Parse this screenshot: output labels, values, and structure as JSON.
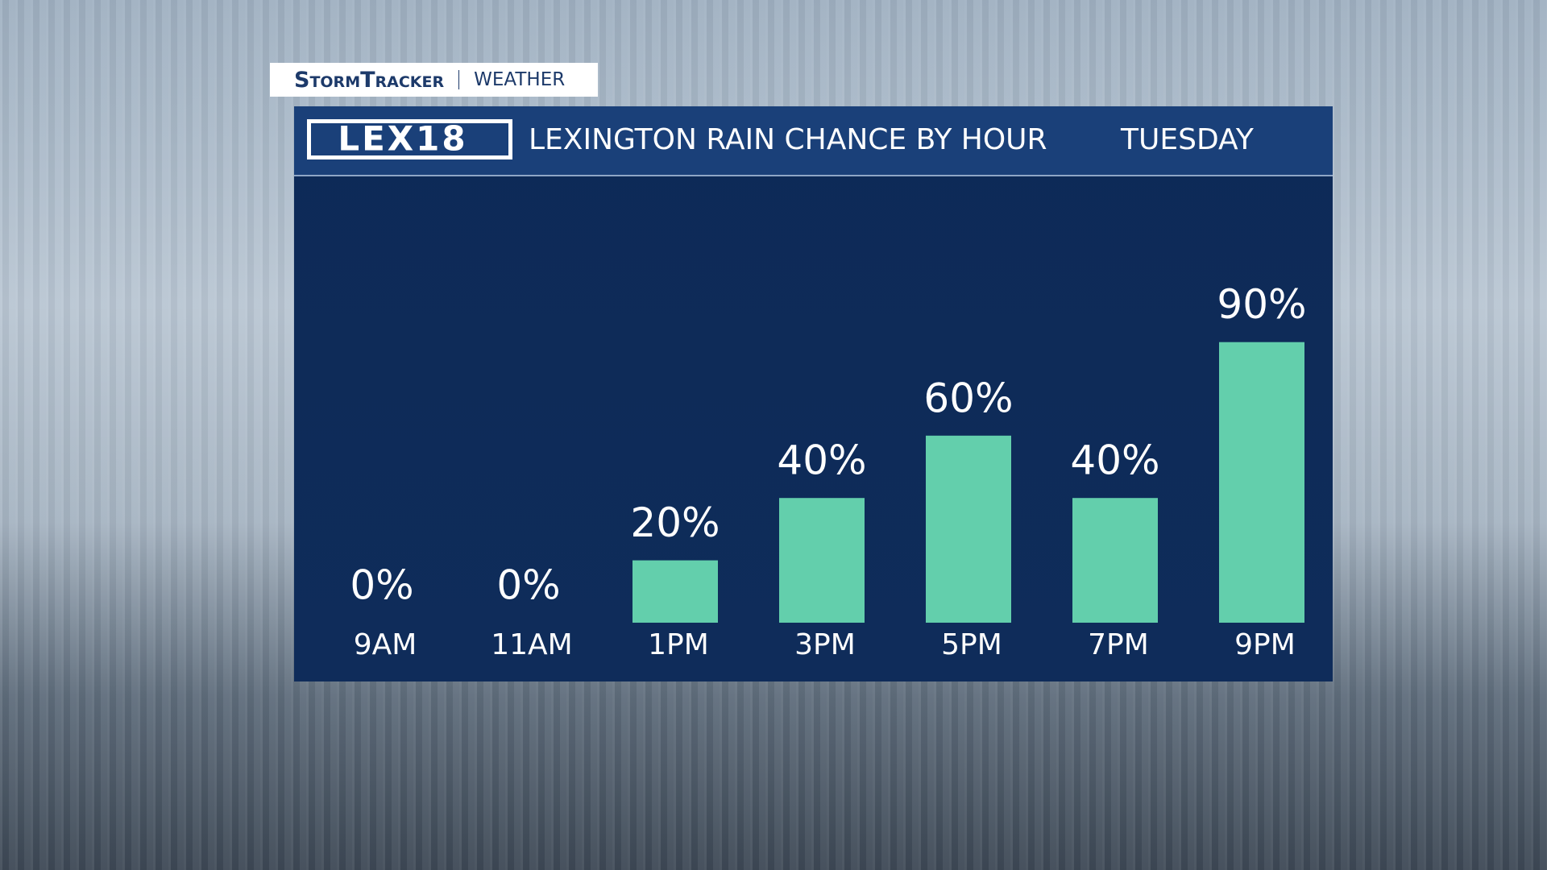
{
  "brand": {
    "name": "StormTracker",
    "section": "WEATHER",
    "logo": "LEX18"
  },
  "chart_data": {
    "type": "bar",
    "title": "LEXINGTON RAIN CHANCE BY HOUR",
    "subtitle": "TUESDAY",
    "categories": [
      "9AM",
      "11AM",
      "1PM",
      "3PM",
      "5PM",
      "7PM",
      "9PM"
    ],
    "values": [
      0,
      0,
      20,
      40,
      60,
      40,
      90
    ],
    "value_labels": [
      "0%",
      "0%",
      "20%",
      "40%",
      "60%",
      "40%",
      "90%"
    ],
    "color": "#63cfac"
  }
}
